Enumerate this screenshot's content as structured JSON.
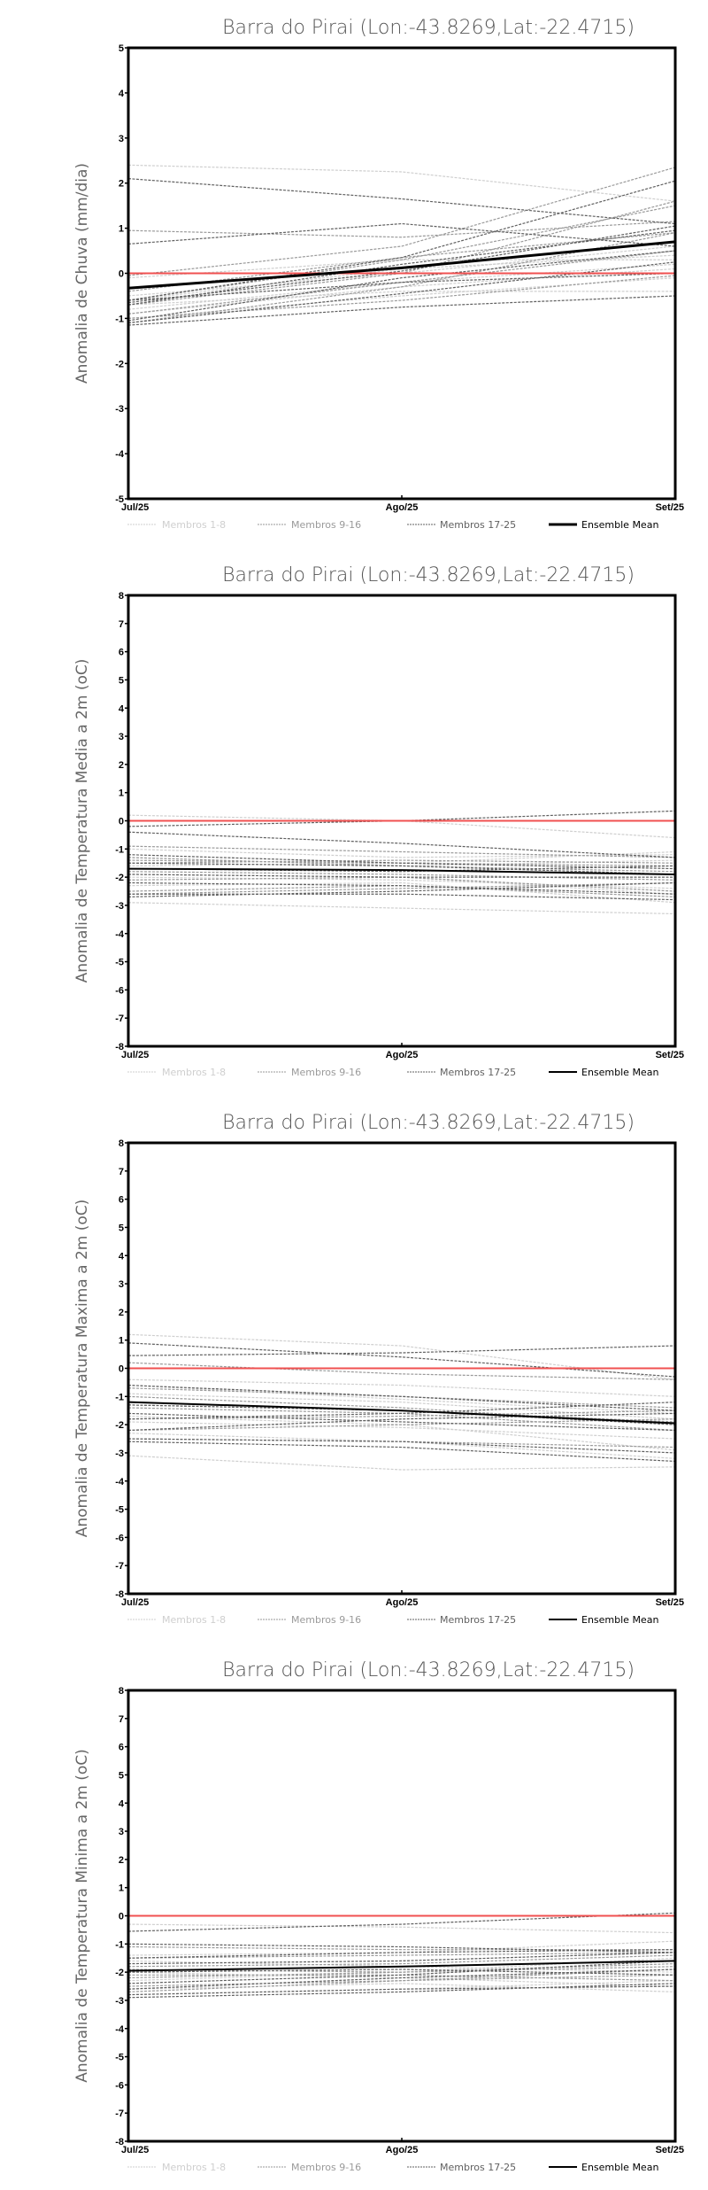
{
  "chart_data": [
    {
      "type": "line",
      "title": "Barra do Pirai (Lon:-43.8269,Lat:-22.4715)",
      "ylabel": "Anomalia de Chuva (mm/dia)",
      "xlabel": "",
      "categories": [
        "Jul/25",
        "Ago/25",
        "Set/25"
      ],
      "ylim": [
        -5,
        5
      ],
      "yticks": [
        "-5",
        "-4",
        "-3",
        "-2",
        "-1",
        "0",
        "1",
        "2",
        "3",
        "4",
        "5"
      ],
      "zero_line_color": "#f05050",
      "ensemble_mean": [
        -0.33,
        0.12,
        0.7
      ],
      "members_1_8": [
        [
          2.4,
          2.25,
          1.6
        ],
        [
          -0.1,
          0.3,
          0.3
        ],
        [
          -0.7,
          -0.4,
          -0.4
        ],
        [
          -0.9,
          -0.3,
          0.1
        ],
        [
          -0.5,
          0.0,
          0.6
        ],
        [
          -0.8,
          -0.2,
          0.2
        ],
        [
          -0.6,
          0.1,
          0.4
        ],
        [
          -1.0,
          -0.5,
          -0.1
        ]
      ],
      "members_9_16": [
        [
          0.95,
          0.8,
          1.15
        ],
        [
          -0.05,
          0.6,
          2.35
        ],
        [
          -0.6,
          0.3,
          1.5
        ],
        [
          -1.1,
          -0.3,
          0.9
        ],
        [
          -0.7,
          0.0,
          1.6
        ],
        [
          -0.9,
          -0.2,
          0.5
        ],
        [
          -0.4,
          0.35,
          0.9
        ],
        [
          -1.0,
          -0.6,
          -0.05
        ]
      ],
      "members_17_25": [
        [
          2.1,
          1.65,
          1.1
        ],
        [
          0.65,
          1.1,
          0.6
        ],
        [
          -0.6,
          0.35,
          2.05
        ],
        [
          -1.15,
          -0.75,
          -0.5
        ],
        [
          -0.65,
          0.05,
          1.05
        ],
        [
          -1.1,
          -0.45,
          0.25
        ],
        [
          -0.7,
          0.2,
          0.95
        ],
        [
          -1.05,
          -0.1,
          0.5
        ],
        [
          -0.6,
          -0.2,
          0.0
        ]
      ]
    },
    {
      "type": "line",
      "title": "Barra do Pirai (Lon:-43.8269,Lat:-22.4715)",
      "ylabel": "Anomalia de Temperatura Media a 2m (oC)",
      "xlabel": "",
      "categories": [
        "Jul/25",
        "Ago/25",
        "Set/25"
      ],
      "ylim": [
        -8,
        8
      ],
      "yticks": [
        "-8",
        "-7",
        "-6",
        "-5",
        "-4",
        "-3",
        "-2",
        "-1",
        "0",
        "1",
        "2",
        "3",
        "4",
        "5",
        "6",
        "7",
        "8"
      ],
      "zero_line_color": "#f05050",
      "ensemble_mean": [
        -1.7,
        -1.75,
        -1.9
      ],
      "members_1_8": [
        [
          0.2,
          0.0,
          -0.6
        ],
        [
          -1.0,
          -1.3,
          -1.2
        ],
        [
          -1.3,
          -1.6,
          -1.4
        ],
        [
          -2.0,
          -2.1,
          -2.4
        ],
        [
          -2.9,
          -3.1,
          -3.3
        ],
        [
          -1.6,
          -1.5,
          -1.1
        ],
        [
          -2.3,
          -2.2,
          -2.9
        ],
        [
          -1.9,
          -2.0,
          -2.6
        ]
      ],
      "members_9_16": [
        [
          -0.9,
          -1.1,
          -1.3
        ],
        [
          -1.4,
          -1.5,
          -1.6
        ],
        [
          -1.8,
          -1.9,
          -2.1
        ],
        [
          -2.6,
          -2.4,
          -2.2
        ],
        [
          -1.5,
          -1.4,
          -1.5
        ],
        [
          -2.1,
          -2.0,
          -2.5
        ],
        [
          -1.3,
          -1.6,
          -1.8
        ],
        [
          -2.5,
          -2.3,
          -2.7
        ]
      ],
      "members_17_25": [
        [
          -0.2,
          0.0,
          0.35
        ],
        [
          -0.4,
          -0.8,
          -1.3
        ],
        [
          -1.2,
          -1.5,
          -1.7
        ],
        [
          -2.7,
          -2.5,
          -2.2
        ],
        [
          -1.9,
          -2.0,
          -2.0
        ],
        [
          -2.6,
          -2.6,
          -2.8
        ],
        [
          -1.5,
          -1.6,
          -1.9
        ],
        [
          -2.2,
          -2.3,
          -2.6
        ],
        [
          -1.7,
          -1.8,
          -1.6
        ]
      ]
    },
    {
      "type": "line",
      "title": "Barra do Pirai (Lon:-43.8269,Lat:-22.4715)",
      "ylabel": "Anomalia de Temperatura Maxima a 2m (oC)",
      "xlabel": "",
      "categories": [
        "Jul/25",
        "Ago/25",
        "Set/25"
      ],
      "ylim": [
        -8,
        8
      ],
      "yticks": [
        "-8",
        "-7",
        "-6",
        "-5",
        "-4",
        "-3",
        "-2",
        "-1",
        "0",
        "1",
        "2",
        "3",
        "4",
        "5",
        "6",
        "7",
        "8"
      ],
      "zero_line_color": "#f05050",
      "ensemble_mean": [
        -1.2,
        -1.5,
        -1.95
      ],
      "members_1_8": [
        [
          1.2,
          0.8,
          -0.4
        ],
        [
          -0.4,
          -0.6,
          -1.0
        ],
        [
          -0.6,
          -1.1,
          -1.6
        ],
        [
          -1.9,
          -2.1,
          -2.5
        ],
        [
          -3.1,
          -3.6,
          -3.5
        ],
        [
          -0.9,
          -1.2,
          -1.8
        ],
        [
          -1.7,
          -2.0,
          -2.9
        ],
        [
          -2.3,
          -2.6,
          -3.2
        ]
      ],
      "members_9_16": [
        [
          0.2,
          -0.2,
          -0.4
        ],
        [
          -0.7,
          -1.0,
          -1.4
        ],
        [
          -1.3,
          -1.5,
          -1.9
        ],
        [
          -1.8,
          -1.7,
          -1.5
        ],
        [
          -2.2,
          -2.0,
          -1.8
        ],
        [
          -1.4,
          -1.6,
          -2.2
        ],
        [
          -2.5,
          -2.6,
          -2.8
        ],
        [
          -1.0,
          -1.4,
          -2.0
        ]
      ],
      "members_17_25": [
        [
          0.9,
          0.4,
          -0.3
        ],
        [
          0.45,
          0.55,
          0.8
        ],
        [
          -0.6,
          -1.0,
          -1.5
        ],
        [
          -1.3,
          -1.5,
          -2.0
        ],
        [
          -2.2,
          -1.8,
          -1.6
        ],
        [
          -2.5,
          -2.6,
          -3.0
        ],
        [
          -1.6,
          -1.9,
          -2.2
        ],
        [
          -2.6,
          -2.8,
          -3.3
        ],
        [
          -1.8,
          -1.6,
          -1.2
        ]
      ]
    },
    {
      "type": "line",
      "title": "Barra do Pirai (Lon:-43.8269,Lat:-22.4715)",
      "ylabel": "Anomalia de Temperatura Minima a 2m (oC)",
      "xlabel": "",
      "categories": [
        "Jul/25",
        "Ago/25",
        "Set/25"
      ],
      "ylim": [
        -8,
        8
      ],
      "yticks": [
        "-8",
        "-7",
        "-6",
        "-5",
        "-4",
        "-3",
        "-2",
        "-1",
        "0",
        "1",
        "2",
        "3",
        "4",
        "5",
        "6",
        "7",
        "8"
      ],
      "zero_line_color": "#f05050",
      "ensemble_mean": [
        -1.95,
        -1.8,
        -1.6
      ],
      "members_1_8": [
        [
          -0.3,
          -0.4,
          -0.6
        ],
        [
          -1.4,
          -1.3,
          -0.9
        ],
        [
          -1.7,
          -1.6,
          -1.3
        ],
        [
          -2.0,
          -2.2,
          -2.5
        ],
        [
          -2.8,
          -2.6,
          -2.3
        ],
        [
          -1.6,
          -1.8,
          -2.0
        ],
        [
          -2.3,
          -2.0,
          -1.5
        ],
        [
          -2.6,
          -2.4,
          -2.7
        ]
      ],
      "members_9_16": [
        [
          -1.1,
          -1.2,
          -1.2
        ],
        [
          -1.5,
          -1.4,
          -1.3
        ],
        [
          -1.8,
          -1.7,
          -1.4
        ],
        [
          -2.2,
          -2.0,
          -1.8
        ],
        [
          -2.5,
          -2.3,
          -2.1
        ],
        [
          -1.9,
          -2.0,
          -1.7
        ],
        [
          -2.7,
          -2.3,
          -1.9
        ],
        [
          -2.1,
          -2.1,
          -2.3
        ]
      ],
      "members_17_25": [
        [
          -0.55,
          -0.3,
          0.1
        ],
        [
          -1.0,
          -1.1,
          -1.3
        ],
        [
          -1.5,
          -1.3,
          -1.2
        ],
        [
          -2.4,
          -2.1,
          -1.6
        ],
        [
          -2.8,
          -2.6,
          -2.5
        ],
        [
          -1.7,
          -1.6,
          -1.3
        ],
        [
          -2.0,
          -1.9,
          -2.1
        ],
        [
          -2.6,
          -2.2,
          -1.9
        ],
        [
          -2.9,
          -2.7,
          -2.4
        ]
      ]
    }
  ],
  "legend": {
    "members_1_8": "Membros 1-8",
    "members_9_16": "Membros 9-16",
    "members_17_25": "Membros 17-25",
    "ensemble_mean": "Ensemble Mean"
  },
  "colors": {
    "members_1_8": "#cfcfcf",
    "members_9_16": "#9a9a9a",
    "members_17_25": "#606060",
    "ensemble_mean": "#000000",
    "zero_line": "#f05050"
  }
}
